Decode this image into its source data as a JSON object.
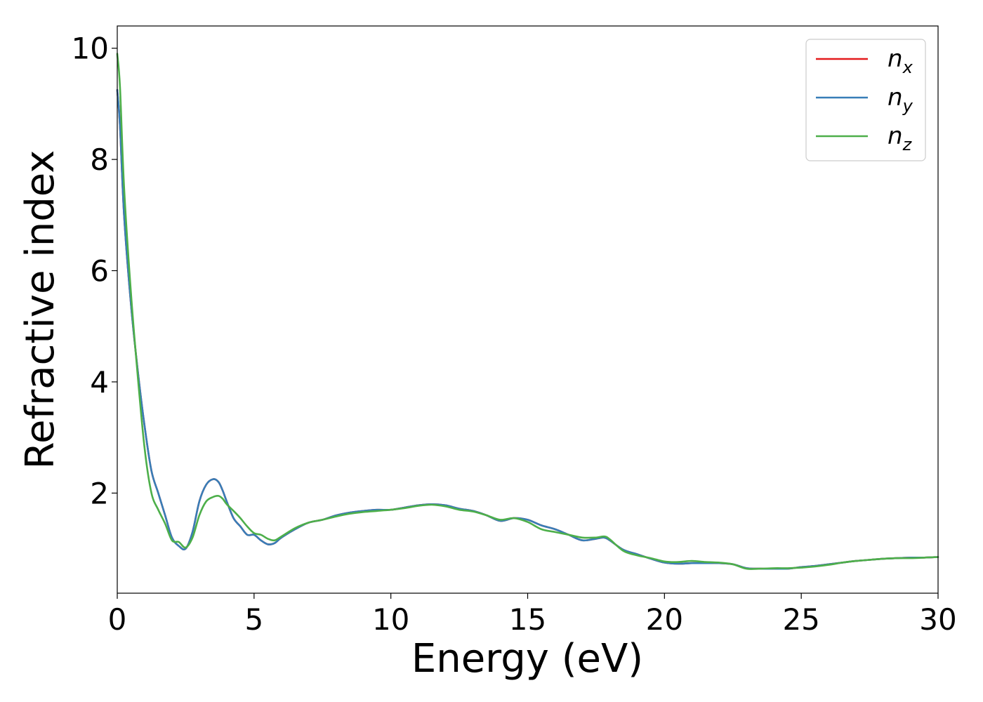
{
  "chart_data": {
    "type": "line",
    "title": "",
    "xlabel": "Energy (eV)",
    "ylabel": "Refractive index",
    "xlim": [
      0,
      30
    ],
    "ylim": [
      0.2,
      10.4
    ],
    "xticks": [
      0,
      5,
      10,
      15,
      20,
      25,
      30
    ],
    "yticks": [
      2,
      4,
      6,
      8,
      10
    ],
    "grid": false,
    "legend_position": "top-right",
    "series": [
      {
        "name": "n",
        "subscript": "x",
        "color": "#e41a1c",
        "x": [
          0,
          0.1,
          0.25,
          0.5,
          0.75,
          1.0,
          1.25,
          1.5,
          1.75,
          2.0,
          2.25,
          2.5,
          2.75,
          3.0,
          3.25,
          3.5,
          3.7,
          3.85,
          4.0,
          4.25,
          4.5,
          4.75,
          5.0,
          5.25,
          5.5,
          5.75,
          6.0,
          6.5,
          7.0,
          7.5,
          8.0,
          8.5,
          9.0,
          9.5,
          10.0,
          10.5,
          11.0,
          11.5,
          12.0,
          12.5,
          13.0,
          13.5,
          14.0,
          14.5,
          15.0,
          15.5,
          16.0,
          16.5,
          17.0,
          17.5,
          17.8,
          18.0,
          18.5,
          19.0,
          19.5,
          20.0,
          20.5,
          21.0,
          21.5,
          22.0,
          22.5,
          23.0,
          23.5,
          24.0,
          24.5,
          25.0,
          25.5,
          26.0,
          26.5,
          27.0,
          27.5,
          28.0,
          28.5,
          29.0,
          29.5,
          30.0
        ],
        "y": [
          9.25,
          8.6,
          7.0,
          5.4,
          4.2,
          3.2,
          2.4,
          2.0,
          1.6,
          1.2,
          1.05,
          1.0,
          1.3,
          1.85,
          2.15,
          2.25,
          2.2,
          2.05,
          1.85,
          1.55,
          1.4,
          1.25,
          1.25,
          1.15,
          1.08,
          1.1,
          1.2,
          1.35,
          1.47,
          1.52,
          1.6,
          1.65,
          1.68,
          1.7,
          1.7,
          1.74,
          1.78,
          1.8,
          1.78,
          1.72,
          1.68,
          1.6,
          1.5,
          1.55,
          1.52,
          1.42,
          1.35,
          1.25,
          1.15,
          1.18,
          1.2,
          1.15,
          0.98,
          0.9,
          0.82,
          0.75,
          0.73,
          0.74,
          0.74,
          0.74,
          0.72,
          0.65,
          0.64,
          0.64,
          0.64,
          0.67,
          0.69,
          0.72,
          0.75,
          0.78,
          0.8,
          0.82,
          0.83,
          0.84,
          0.84,
          0.85
        ]
      },
      {
        "name": "n",
        "subscript": "y",
        "color": "#377eb8",
        "x": [
          0,
          0.1,
          0.25,
          0.5,
          0.75,
          1.0,
          1.25,
          1.5,
          1.75,
          2.0,
          2.25,
          2.5,
          2.75,
          3.0,
          3.25,
          3.5,
          3.7,
          3.85,
          4.0,
          4.25,
          4.5,
          4.75,
          5.0,
          5.25,
          5.5,
          5.75,
          6.0,
          6.5,
          7.0,
          7.5,
          8.0,
          8.5,
          9.0,
          9.5,
          10.0,
          10.5,
          11.0,
          11.5,
          12.0,
          12.5,
          13.0,
          13.5,
          14.0,
          14.5,
          15.0,
          15.5,
          16.0,
          16.5,
          17.0,
          17.5,
          17.8,
          18.0,
          18.5,
          19.0,
          19.5,
          20.0,
          20.5,
          21.0,
          21.5,
          22.0,
          22.5,
          23.0,
          23.5,
          24.0,
          24.5,
          25.0,
          25.5,
          26.0,
          26.5,
          27.0,
          27.5,
          28.0,
          28.5,
          29.0,
          29.5,
          30.0
        ],
        "y": [
          9.25,
          8.6,
          7.0,
          5.4,
          4.2,
          3.2,
          2.4,
          2.0,
          1.6,
          1.2,
          1.05,
          1.0,
          1.3,
          1.85,
          2.15,
          2.25,
          2.2,
          2.05,
          1.85,
          1.55,
          1.4,
          1.25,
          1.25,
          1.15,
          1.08,
          1.1,
          1.2,
          1.35,
          1.47,
          1.52,
          1.6,
          1.65,
          1.68,
          1.7,
          1.7,
          1.74,
          1.78,
          1.8,
          1.78,
          1.72,
          1.68,
          1.6,
          1.5,
          1.55,
          1.52,
          1.42,
          1.35,
          1.25,
          1.15,
          1.18,
          1.2,
          1.15,
          0.98,
          0.9,
          0.82,
          0.75,
          0.73,
          0.74,
          0.74,
          0.74,
          0.72,
          0.65,
          0.64,
          0.64,
          0.64,
          0.67,
          0.69,
          0.72,
          0.75,
          0.78,
          0.8,
          0.82,
          0.83,
          0.84,
          0.84,
          0.85
        ]
      },
      {
        "name": "n",
        "subscript": "z",
        "color": "#4daf4a",
        "x": [
          0,
          0.1,
          0.25,
          0.5,
          0.75,
          1.0,
          1.25,
          1.5,
          1.75,
          2.0,
          2.25,
          2.5,
          2.75,
          3.0,
          3.25,
          3.5,
          3.7,
          3.85,
          4.0,
          4.25,
          4.5,
          4.75,
          5.0,
          5.25,
          5.5,
          5.75,
          6.0,
          6.5,
          7.0,
          7.5,
          8.0,
          8.5,
          9.0,
          9.5,
          10.0,
          10.5,
          11.0,
          11.5,
          12.0,
          12.5,
          13.0,
          13.5,
          14.0,
          14.5,
          15.0,
          15.5,
          16.0,
          16.5,
          17.0,
          17.5,
          17.8,
          18.0,
          18.5,
          19.0,
          19.5,
          20.0,
          20.5,
          21.0,
          21.5,
          22.0,
          22.5,
          23.0,
          23.5,
          24.0,
          24.5,
          25.0,
          25.5,
          26.0,
          26.5,
          27.0,
          27.5,
          28.0,
          28.5,
          29.0,
          29.5,
          30.0
        ],
        "y": [
          9.9,
          9.3,
          7.5,
          5.6,
          4.1,
          2.8,
          2.0,
          1.7,
          1.45,
          1.15,
          1.12,
          1.02,
          1.2,
          1.6,
          1.85,
          1.93,
          1.95,
          1.9,
          1.8,
          1.68,
          1.55,
          1.4,
          1.28,
          1.25,
          1.18,
          1.15,
          1.22,
          1.37,
          1.47,
          1.52,
          1.58,
          1.63,
          1.66,
          1.68,
          1.7,
          1.73,
          1.77,
          1.79,
          1.76,
          1.7,
          1.67,
          1.6,
          1.52,
          1.55,
          1.48,
          1.35,
          1.3,
          1.25,
          1.2,
          1.2,
          1.22,
          1.17,
          0.96,
          0.88,
          0.83,
          0.77,
          0.76,
          0.78,
          0.76,
          0.75,
          0.72,
          0.64,
          0.64,
          0.65,
          0.65,
          0.66,
          0.68,
          0.71,
          0.75,
          0.78,
          0.8,
          0.82,
          0.83,
          0.83,
          0.84,
          0.85
        ]
      }
    ]
  }
}
